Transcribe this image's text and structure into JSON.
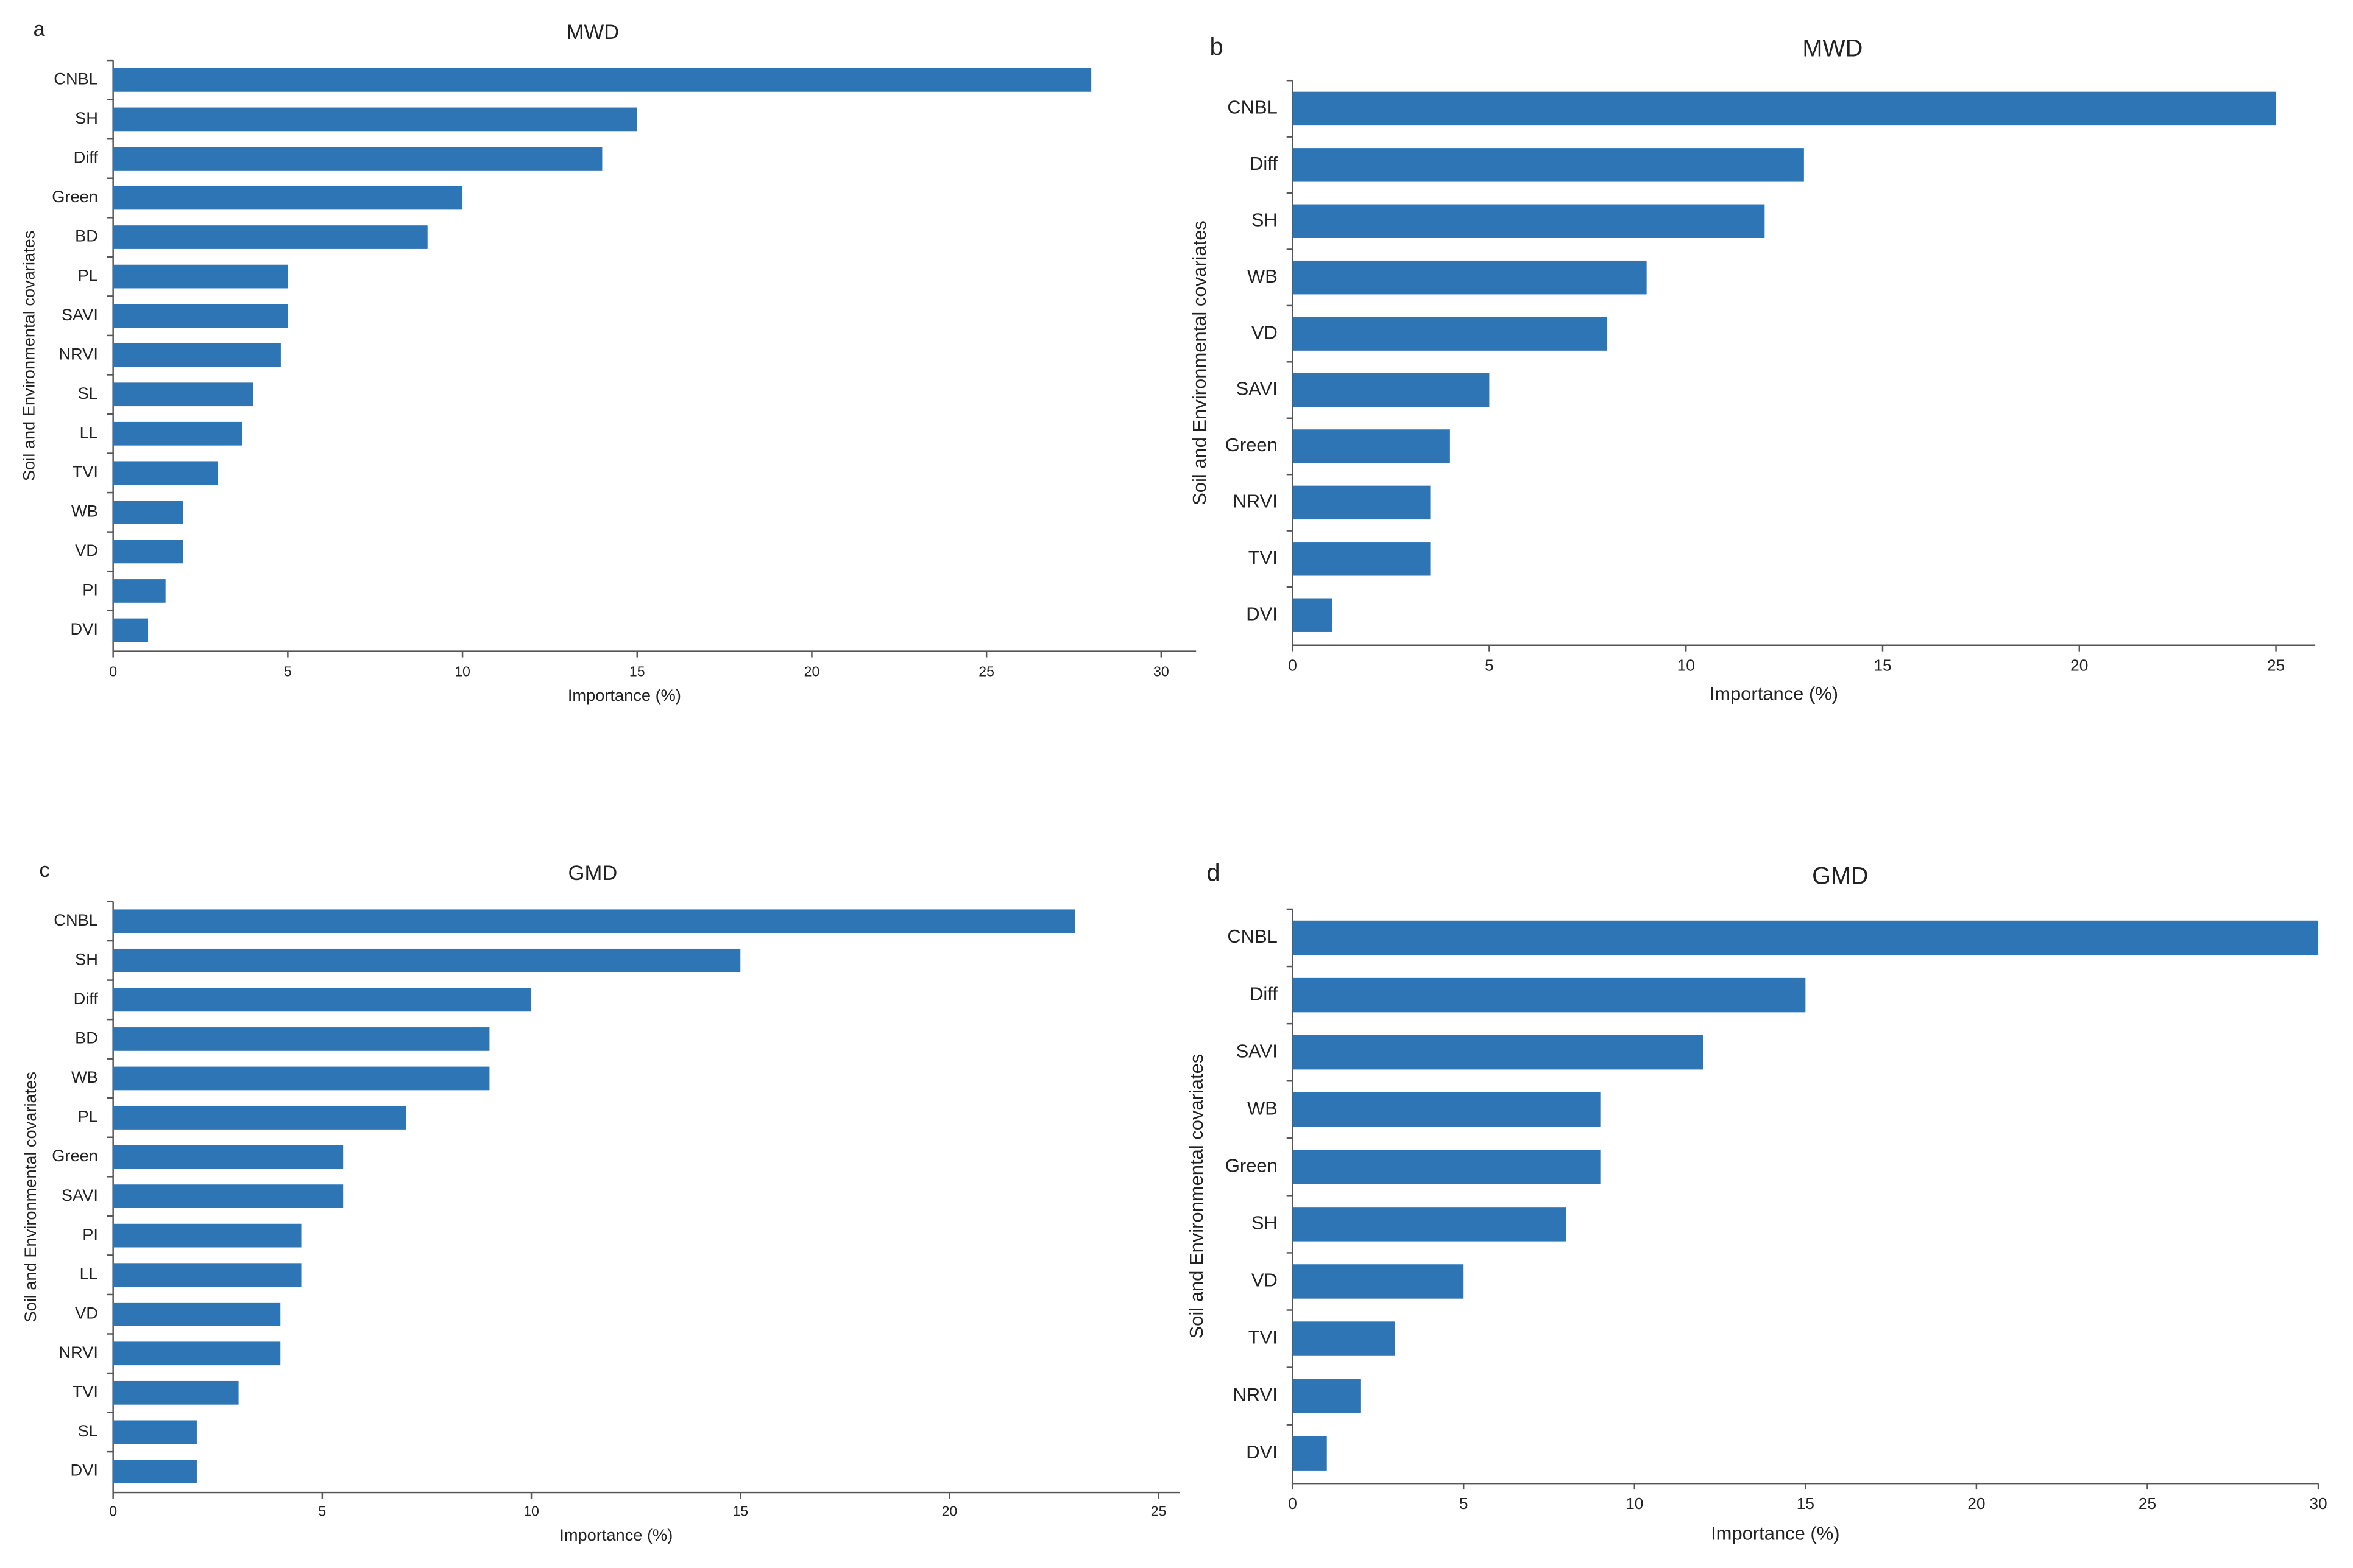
{
  "chart_data": [
    {
      "type": "barh",
      "panel": "a",
      "title": "MWD",
      "xlabel": "Importance (%)",
      "ylabel": "Soil and Environmental covariates",
      "color": "#2e75b6",
      "categories": [
        "CNBL",
        "SH",
        "Diff",
        "Green",
        "BD",
        "PL",
        "SAVI",
        "NRVI",
        "SL",
        "LL",
        "TVI",
        "WB",
        "VD",
        "PI",
        "DVI"
      ],
      "values": [
        28,
        15,
        14,
        10,
        9,
        5,
        5,
        4.8,
        4,
        3.7,
        3,
        2,
        2,
        1.5,
        1
      ],
      "xlim": [
        0,
        31
      ],
      "xticks": [
        0,
        5,
        10,
        15,
        20,
        25,
        30
      ]
    },
    {
      "type": "barh",
      "panel": "b",
      "title": "MWD",
      "xlabel": "Importance (%)",
      "ylabel": "Soil and Environmental covariates",
      "color": "#2e75b6",
      "categories": [
        "CNBL",
        "Diff",
        "SH",
        "WB",
        "VD",
        "SAVI",
        "Green",
        "NRVI",
        "TVI",
        "DVI"
      ],
      "values": [
        25,
        13,
        12,
        9,
        8,
        5,
        4,
        3.5,
        3.5,
        1
      ],
      "xlim": [
        0,
        26
      ],
      "xticks": [
        0,
        5,
        10,
        15,
        20,
        25
      ]
    },
    {
      "type": "barh",
      "panel": "c",
      "title": "GMD",
      "xlabel": "Importance (%)",
      "ylabel": "Soil and Environmental covariates",
      "color": "#2e75b6",
      "categories": [
        "CNBL",
        "SH",
        "Diff",
        "BD",
        "WB",
        "PL",
        "Green",
        "SAVI",
        "PI",
        "LL",
        "VD",
        "NRVI",
        "TVI",
        "SL",
        "DVI"
      ],
      "values": [
        23,
        15,
        10,
        9,
        9,
        7,
        5.5,
        5.5,
        4.5,
        4.5,
        4,
        4,
        3,
        2,
        2
      ],
      "xlim": [
        0,
        25.5
      ],
      "xticks": [
        0,
        5,
        10,
        15,
        20,
        25
      ]
    },
    {
      "type": "barh",
      "panel": "d",
      "title": "GMD",
      "xlabel": "Importance (%)",
      "ylabel": "Soil and Environmental covariates",
      "color": "#2e75b6",
      "categories": [
        "CNBL",
        "Diff",
        "SAVI",
        "WB",
        "Green",
        "SH",
        "VD",
        "TVI",
        "NRVI",
        "DVI"
      ],
      "values": [
        30,
        15,
        12,
        9,
        9,
        8,
        5,
        3,
        2,
        1
      ],
      "xlim": [
        0,
        30
      ],
      "xticks": [
        0,
        5,
        10,
        15,
        20,
        25,
        30
      ]
    }
  ]
}
